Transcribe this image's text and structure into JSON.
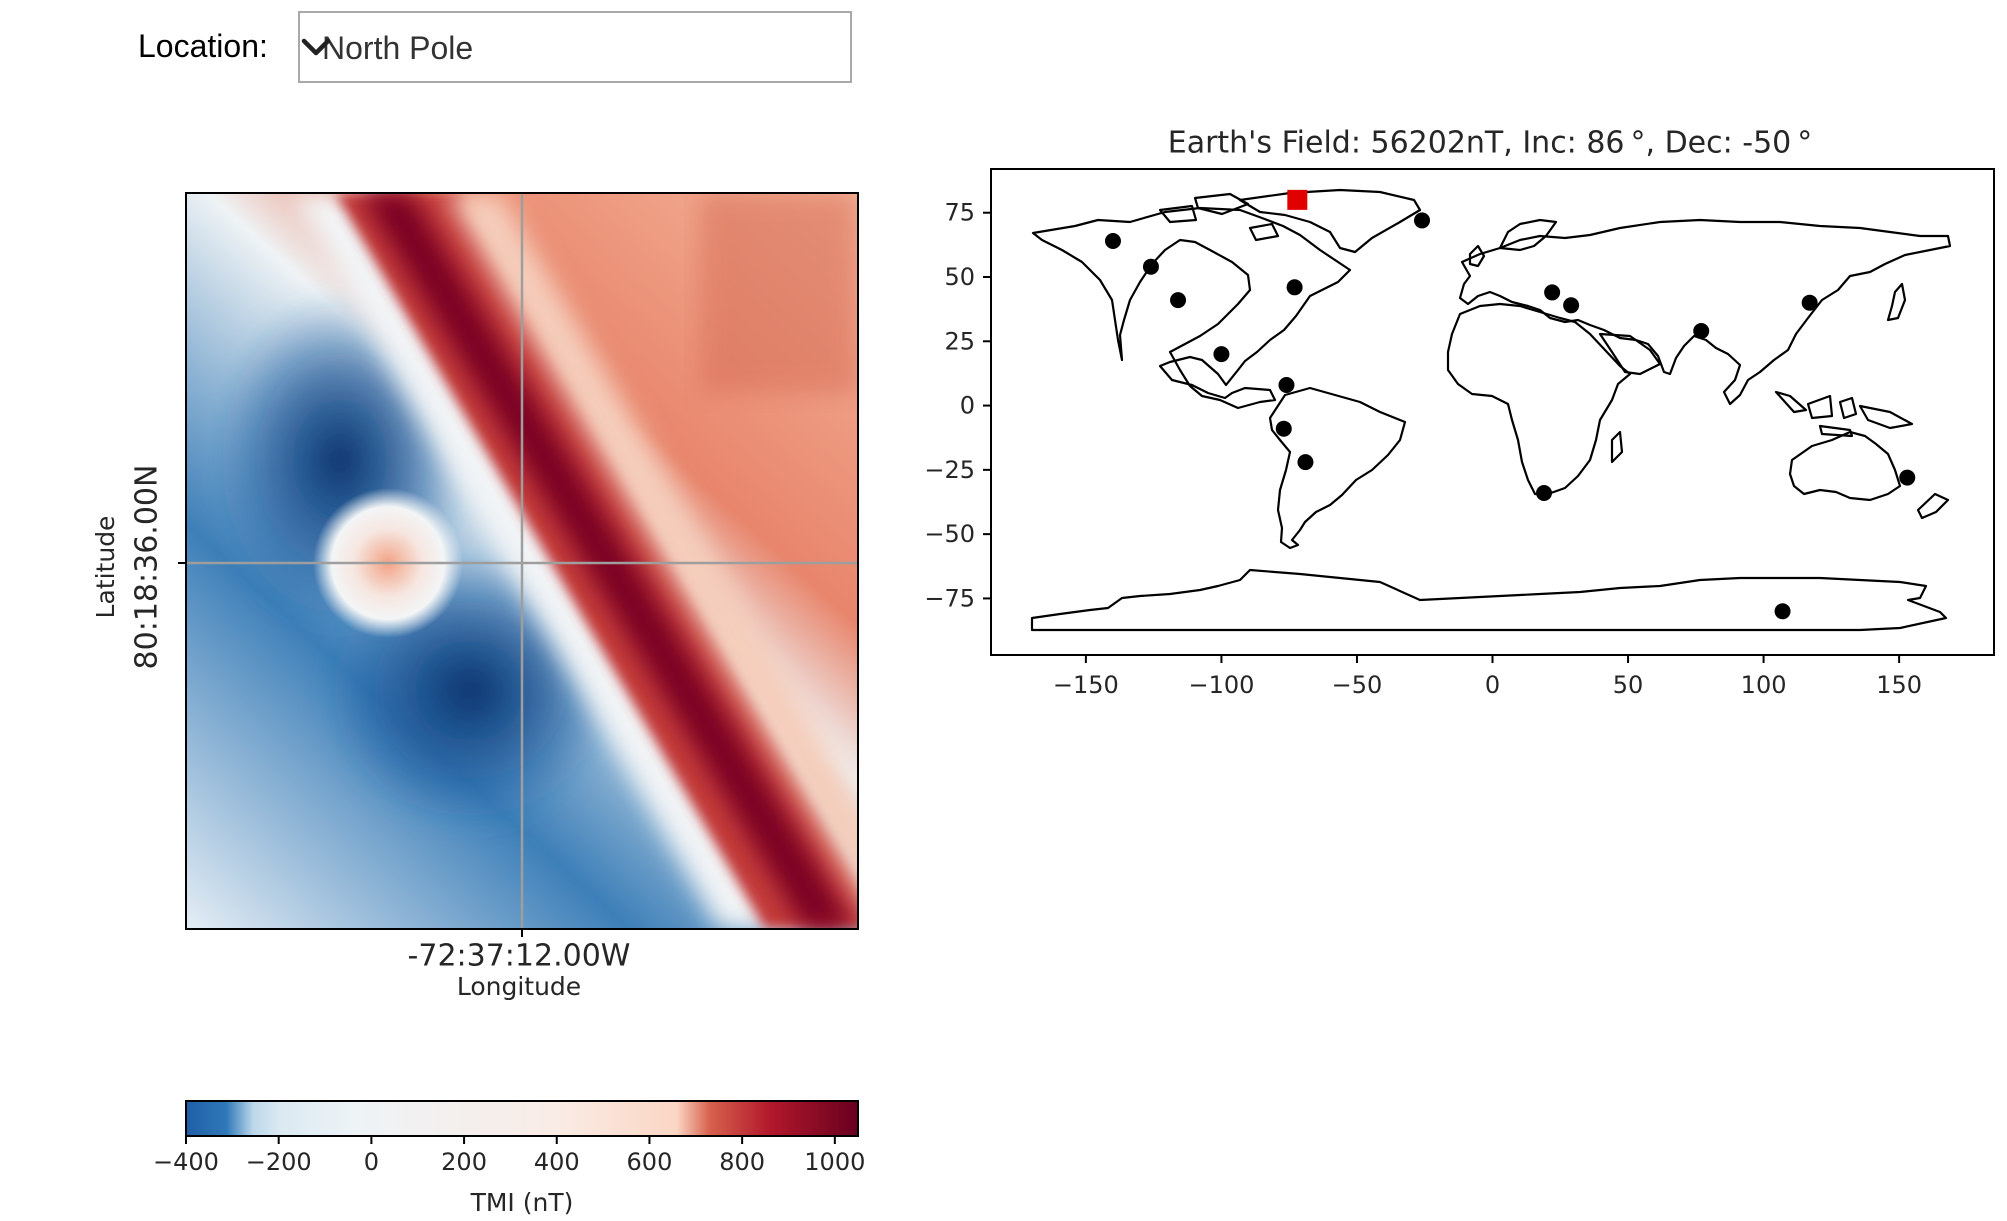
{
  "location": {
    "label": "Location:",
    "selected": "North Pole"
  },
  "anomaly_plot": {
    "xlabel": "Longitude",
    "ylabel": "Latitude",
    "x_center_label": "-72:37:12.00W",
    "y_center_label": "80:18:36.00N"
  },
  "colorbar": {
    "label": "TMI (nT)",
    "colormap": "RdBu_r",
    "range": [
      -400,
      1050
    ],
    "ticks": [
      "−400",
      "−200",
      "0",
      "200",
      "400",
      "600",
      "800",
      "1000"
    ],
    "tick_values": [
      -400,
      -200,
      0,
      200,
      400,
      600,
      800,
      1000
    ]
  },
  "chart_data": [
    {
      "type": "heatmap",
      "name": "tmi-anomaly",
      "title": "",
      "xlabel": "Longitude",
      "ylabel": "Latitude",
      "x_center": "-72:37:12.00W",
      "y_center": "80:18:36.00N",
      "value_range": [
        -400,
        1050
      ],
      "colorbar_label": "TMI (nT)"
    },
    {
      "type": "scatter",
      "name": "world-map",
      "title": "Earth's Field: 56202nT, Inc: 86 °, Dec: -50 °",
      "xlim": [
        -185,
        185
      ],
      "ylim": [
        -97,
        92
      ],
      "xticks": [
        -150,
        -100,
        -50,
        0,
        50,
        100,
        150
      ],
      "yticks": [
        75,
        50,
        25,
        0,
        -25,
        -50,
        -75
      ],
      "xtick_labels": [
        "−150",
        "−100",
        "−50",
        "0",
        "50",
        "100",
        "150"
      ],
      "ytick_labels": [
        "75",
        "50",
        "25",
        "0",
        "−25",
        "−50",
        "−75"
      ],
      "points": [
        {
          "x": -140,
          "y": 64
        },
        {
          "x": -126,
          "y": 54
        },
        {
          "x": -116,
          "y": 41
        },
        {
          "x": -100,
          "y": 20
        },
        {
          "x": -73,
          "y": 46
        },
        {
          "x": -76,
          "y": 8
        },
        {
          "x": -77,
          "y": -9
        },
        {
          "x": -69,
          "y": -22
        },
        {
          "x": -26,
          "y": 72
        },
        {
          "x": 22,
          "y": 44
        },
        {
          "x": 29,
          "y": 39
        },
        {
          "x": 19,
          "y": -34
        },
        {
          "x": 77,
          "y": 29
        },
        {
          "x": 117,
          "y": 40
        },
        {
          "x": 153,
          "y": -28
        },
        {
          "x": 107,
          "y": -80
        }
      ],
      "selected_point": {
        "x": -72,
        "y": 80
      },
      "point_color": "#000000",
      "selected_color": "#e00000"
    }
  ]
}
